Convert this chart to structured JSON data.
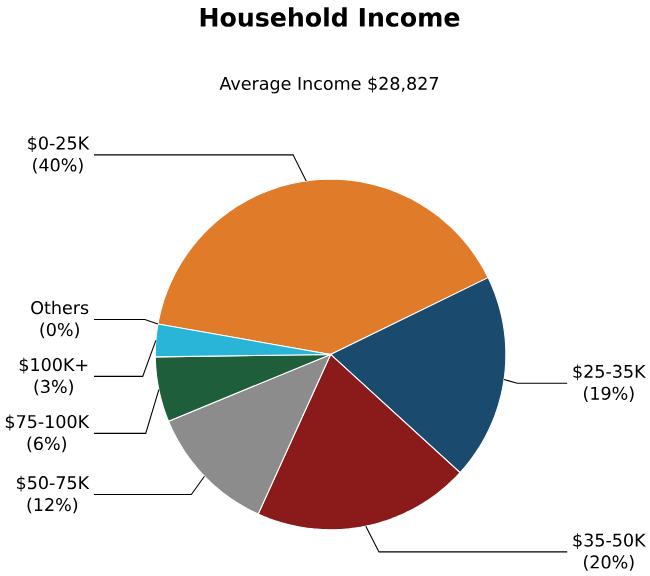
{
  "chart_data": {
    "type": "pie",
    "title": "Household Income",
    "subtitle": "Average Income  $28,827",
    "categories": [
      "$0-25K",
      "$25-35K",
      "$35-50K",
      "$50-75K",
      "$75-100K",
      "$100K+",
      "Others"
    ],
    "values": [
      40,
      19,
      20,
      12,
      6,
      3,
      0
    ],
    "value_labels": [
      "(40%)",
      "(19%)",
      "(20%)",
      "(12%)",
      "(6%)",
      "(3%)",
      "(0%)"
    ],
    "colors": [
      "#e07b2a",
      "#1a4a6e",
      "#8b1a1a",
      "#8c8c8c",
      "#1f5e3a",
      "#29b5d8",
      "#c0c0c0"
    ]
  }
}
